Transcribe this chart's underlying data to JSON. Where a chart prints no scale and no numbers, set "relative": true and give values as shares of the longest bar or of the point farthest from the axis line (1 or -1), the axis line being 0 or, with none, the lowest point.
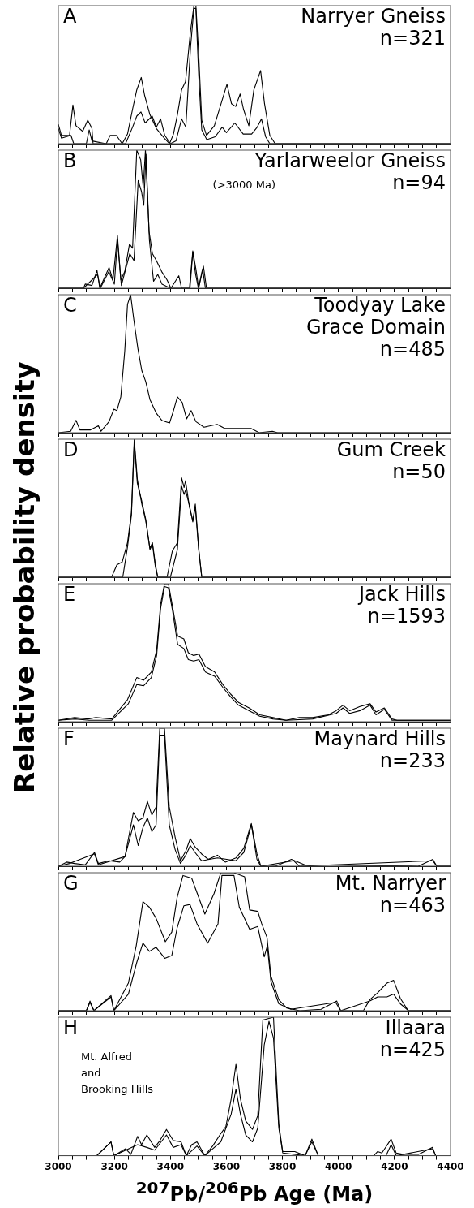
{
  "chart_data": [
    {
      "type": "line",
      "title": "A",
      "subtitle": "Narryer Gneiss\nn=321",
      "relative": true,
      "xlim": [
        3000,
        4400
      ],
      "tick_labels": false,
      "xticks": [
        3000,
        {
          "value": 3050,
          "label": null
        },
        {
          "value": 3100,
          "label": null
        },
        {
          "value": 3150,
          "label": null
        },
        3200,
        {
          "value": 3250,
          "label": null
        },
        {
          "value": 3300,
          "label": null
        },
        {
          "value": 3350,
          "label": null
        },
        3400,
        {
          "value": 3450,
          "label": null
        },
        {
          "value": 3500,
          "label": null
        },
        {
          "value": 3550,
          "label": null
        },
        3600,
        {
          "value": 3650,
          "label": null
        },
        {
          "value": 3700,
          "label": null
        },
        {
          "value": 3750,
          "label": null
        },
        3800,
        {
          "value": 3850,
          "label": null
        },
        {
          "value": 3900,
          "label": null
        },
        {
          "value": 3950,
          "label": null
        },
        4000,
        {
          "value": 4050,
          "label": null
        },
        {
          "value": 4100,
          "label": null
        },
        {
          "value": 4150,
          "label": null
        },
        4200,
        {
          "value": 4250,
          "label": null
        },
        {
          "value": 4300,
          "label": null
        },
        {
          "value": 4350,
          "label": null
        },
        4400
      ],
      "series": [
        {
          "color": "#000000",
          "x": [
            3000,
            3011,
            3040,
            3052,
            3063,
            3087,
            3105,
            3120,
            3124,
            3171,
            3185,
            3207,
            3228,
            3247,
            3265,
            3280,
            3296,
            3308,
            3327,
            3350,
            3378,
            3397,
            3411,
            3425,
            3440,
            3454,
            3472,
            3484,
            3491,
            3501,
            3512,
            3529,
            3557,
            3581,
            3602,
            3618,
            3633,
            3649,
            3661,
            3680,
            3698,
            3722,
            3736,
            3755,
            3774,
            4400
          ],
          "values": [
            0.14,
            0.06,
            0.06,
            0.28,
            0.13,
            0.09,
            0.17,
            0.11,
            0,
            0,
            0.06,
            0.06,
            0,
            0.07,
            0.25,
            0.39,
            0.48,
            0.35,
            0.21,
            0.11,
            0.04,
            0,
            0.07,
            0.21,
            0.39,
            0.45,
            0.82,
            1,
            1,
            0.65,
            0.17,
            0.06,
            0.13,
            0.29,
            0.43,
            0.29,
            0.27,
            0.36,
            0.25,
            0.13,
            0.39,
            0.53,
            0.29,
            0.06,
            0,
            0
          ]
        },
        {
          "color": "#000000",
          "x": [
            3000,
            3011,
            3045,
            3055,
            3100,
            3110,
            3120,
            3170,
            3240,
            3265,
            3280,
            3295,
            3310,
            3335,
            3350,
            3365,
            3380,
            3400,
            3420,
            3440,
            3455,
            3472,
            3484,
            3491,
            3501,
            3512,
            3530,
            3560,
            3585,
            3600,
            3630,
            3660,
            3690,
            3710,
            3725,
            3740,
            3755,
            4400
          ],
          "values": [
            0.11,
            0.04,
            0.06,
            0,
            0,
            0.1,
            0.02,
            0,
            0,
            0.12,
            0.2,
            0.23,
            0.15,
            0.2,
            0.12,
            0.18,
            0.06,
            0,
            0.02,
            0.18,
            0.12,
            0.7,
            0.98,
            0.98,
            0.5,
            0.1,
            0.03,
            0.05,
            0.12,
            0.08,
            0.15,
            0.07,
            0.07,
            0.12,
            0.18,
            0.05,
            0,
            0
          ]
        }
      ]
    },
    {
      "type": "line",
      "title": "B",
      "subtitle": "Yarlarweelor Gneiss\nn=94",
      "annotations": [
        "(>3000 Ma)"
      ],
      "relative": true,
      "xlim": [
        3000,
        4400
      ],
      "tick_labels": false,
      "xticks": [
        3000,
        {
          "value": 3050,
          "label": null
        },
        {
          "value": 3100,
          "label": null
        },
        {
          "value": 3150,
          "label": null
        },
        3200,
        {
          "value": 3250,
          "label": null
        },
        {
          "value": 3300,
          "label": null
        },
        {
          "value": 3350,
          "label": null
        },
        3400,
        {
          "value": 3450,
          "label": null
        },
        {
          "value": 3500,
          "label": null
        },
        {
          "value": 3550,
          "label": null
        },
        3600,
        {
          "value": 3650,
          "label": null
        },
        {
          "value": 3700,
          "label": null
        },
        {
          "value": 3750,
          "label": null
        },
        3800,
        {
          "value": 3850,
          "label": null
        },
        {
          "value": 3900,
          "label": null
        },
        {
          "value": 3950,
          "label": null
        },
        4000,
        {
          "value": 4050,
          "label": null
        },
        {
          "value": 4100,
          "label": null
        },
        {
          "value": 4150,
          "label": null
        },
        4200,
        {
          "value": 4250,
          "label": null
        },
        {
          "value": 4300,
          "label": null
        },
        {
          "value": 4350,
          "label": null
        },
        4400
      ],
      "series": [
        {
          "color": "#000000",
          "x": [
            3000,
            3090,
            3096,
            3120,
            3138,
            3148,
            3181,
            3195,
            3211,
            3223,
            3237,
            3254,
            3265,
            3280,
            3294,
            3303,
            3311,
            3324,
            3336,
            3350,
            3369,
            3388,
            3402,
            3430,
            3440,
            3468,
            3480,
            3491,
            3501,
            3518,
            3529,
            4400
          ],
          "values": [
            0,
            0,
            0.03,
            0.02,
            0.13,
            0,
            0.15,
            0.06,
            0.38,
            0.06,
            0.12,
            0.32,
            0.29,
            1,
            0.93,
            0.73,
            1,
            0.41,
            0.25,
            0.2,
            0.12,
            0.06,
            0,
            0.09,
            0,
            0,
            0.27,
            0.14,
            0,
            0.16,
            0,
            0
          ]
        },
        {
          "color": "#000000",
          "x": [
            3000,
            3090,
            3140,
            3150,
            3180,
            3200,
            3211,
            3225,
            3255,
            3270,
            3285,
            3297,
            3305,
            3313,
            3325,
            3340,
            3355,
            3370,
            3400,
            3470,
            3480,
            3490,
            3500,
            3515,
            3525,
            4400
          ],
          "values": [
            0,
            0,
            0.1,
            0,
            0.12,
            0.03,
            0.35,
            0.02,
            0.25,
            0.2,
            0.78,
            0.7,
            0.6,
            0.97,
            0.35,
            0.05,
            0.1,
            0.03,
            0,
            0,
            0.26,
            0.1,
            0,
            0.14,
            0,
            0
          ]
        }
      ]
    },
    {
      "type": "line",
      "title": "C",
      "subtitle": "Toodyay Lake\nGrace Domain\nn=485",
      "relative": true,
      "xlim": [
        3000,
        4400
      ],
      "tick_labels": false,
      "xticks": [
        3000,
        {
          "value": 3050,
          "label": null
        },
        {
          "value": 3100,
          "label": null
        },
        {
          "value": 3150,
          "label": null
        },
        3200,
        {
          "value": 3250,
          "label": null
        },
        {
          "value": 3300,
          "label": null
        },
        {
          "value": 3350,
          "label": null
        },
        3400,
        {
          "value": 3450,
          "label": null
        },
        {
          "value": 3500,
          "label": null
        },
        {
          "value": 3550,
          "label": null
        },
        3600,
        {
          "value": 3650,
          "label": null
        },
        {
          "value": 3700,
          "label": null
        },
        {
          "value": 3750,
          "label": null
        },
        3800,
        {
          "value": 3850,
          "label": null
        },
        {
          "value": 3900,
          "label": null
        },
        {
          "value": 3950,
          "label": null
        },
        4000,
        {
          "value": 4050,
          "label": null
        },
        {
          "value": 4100,
          "label": null
        },
        {
          "value": 4150,
          "label": null
        },
        4200,
        {
          "value": 4250,
          "label": null
        },
        {
          "value": 4300,
          "label": null
        },
        {
          "value": 4350,
          "label": null
        },
        4400
      ],
      "series": [
        {
          "color": "#000000",
          "x": [
            3000,
            3044,
            3063,
            3077,
            3115,
            3143,
            3152,
            3181,
            3198,
            3209,
            3223,
            3237,
            3247,
            3258,
            3270,
            3284,
            3298,
            3312,
            3327,
            3350,
            3369,
            3383,
            3397,
            3411,
            3425,
            3442,
            3458,
            3474,
            3491,
            3520,
            3567,
            3595,
            3632,
            3689,
            3717,
            3764,
            3783,
            3849,
            4400
          ],
          "values": [
            0,
            0.01,
            0.09,
            0.02,
            0.02,
            0.05,
            0.01,
            0.08,
            0.17,
            0.16,
            0.26,
            0.59,
            0.93,
            1,
            0.81,
            0.61,
            0.45,
            0.37,
            0.24,
            0.14,
            0.09,
            0.08,
            0.07,
            0.16,
            0.26,
            0.22,
            0.1,
            0.16,
            0.08,
            0.04,
            0.06,
            0.03,
            0.03,
            0.03,
            0,
            0.01,
            0,
            0,
            0
          ]
        }
      ]
    },
    {
      "type": "line",
      "title": "D",
      "subtitle": "Gum Creek\nn=50",
      "ylabel": "Relative probability density",
      "relative": true,
      "xlim": [
        3000,
        4400
      ],
      "tick_labels": false,
      "xticks": [
        3000,
        {
          "value": 3050,
          "label": null
        },
        {
          "value": 3100,
          "label": null
        },
        {
          "value": 3150,
          "label": null
        },
        3200,
        {
          "value": 3250,
          "label": null
        },
        {
          "value": 3300,
          "label": null
        },
        {
          "value": 3350,
          "label": null
        },
        3400,
        {
          "value": 3450,
          "label": null
        },
        {
          "value": 3500,
          "label": null
        },
        {
          "value": 3550,
          "label": null
        },
        3600,
        {
          "value": 3650,
          "label": null
        },
        {
          "value": 3700,
          "label": null
        },
        {
          "value": 3750,
          "label": null
        },
        3800,
        {
          "value": 3850,
          "label": null
        },
        {
          "value": 3900,
          "label": null
        },
        {
          "value": 3950,
          "label": null
        },
        4000,
        {
          "value": 4050,
          "label": null
        },
        {
          "value": 4100,
          "label": null
        },
        {
          "value": 4150,
          "label": null
        },
        4200,
        {
          "value": 4250,
          "label": null
        },
        {
          "value": 4300,
          "label": null
        },
        {
          "value": 4350,
          "label": null
        },
        4400
      ],
      "series": [
        {
          "color": "#000000",
          "x": [
            3000,
            3190,
            3209,
            3228,
            3247,
            3261,
            3271,
            3282,
            3298,
            3312,
            3327,
            3336,
            3346,
            3355,
            3388,
            3407,
            3425,
            3440,
            3449,
            3454,
            3468,
            3480,
            3489,
            3501,
            3512,
            4400
          ],
          "values": [
            0,
            0,
            0.09,
            0.11,
            0.25,
            0.47,
            1,
            0.71,
            0.53,
            0.41,
            0.21,
            0.25,
            0.1,
            0,
            0,
            0.19,
            0.25,
            0.72,
            0.65,
            0.7,
            0.51,
            0.41,
            0.53,
            0.21,
            0,
            0
          ]
        },
        {
          "color": "#000000",
          "x": [
            3000,
            3230,
            3247,
            3261,
            3271,
            3282,
            3298,
            3312,
            3327,
            3336,
            3346,
            3355,
            3400,
            3425,
            3440,
            3449,
            3454,
            3468,
            3480,
            3489,
            3501,
            3512,
            4400
          ],
          "values": [
            0,
            0,
            0.22,
            0.45,
            0.98,
            0.68,
            0.55,
            0.42,
            0.2,
            0.24,
            0.08,
            0,
            0,
            0.2,
            0.66,
            0.6,
            0.63,
            0.52,
            0.4,
            0.51,
            0.2,
            0,
            0
          ]
        }
      ]
    },
    {
      "type": "line",
      "title": "E",
      "subtitle": "Jack Hills\nn=1593",
      "relative": true,
      "xlim": [
        3000,
        4400
      ],
      "tick_labels": false,
      "xticks": [
        3000,
        {
          "value": 3050,
          "label": null
        },
        {
          "value": 3100,
          "label": null
        },
        {
          "value": 3150,
          "label": null
        },
        3200,
        {
          "value": 3250,
          "label": null
        },
        {
          "value": 3300,
          "label": null
        },
        {
          "value": 3350,
          "label": null
        },
        3400,
        {
          "value": 3450,
          "label": null
        },
        {
          "value": 3500,
          "label": null
        },
        {
          "value": 3550,
          "label": null
        },
        3600,
        {
          "value": 3650,
          "label": null
        },
        {
          "value": 3700,
          "label": null
        },
        {
          "value": 3750,
          "label": null
        },
        3800,
        {
          "value": 3850,
          "label": null
        },
        {
          "value": 3900,
          "label": null
        },
        {
          "value": 3950,
          "label": null
        },
        4000,
        {
          "value": 4050,
          "label": null
        },
        {
          "value": 4100,
          "label": null
        },
        {
          "value": 4150,
          "label": null
        },
        4200,
        {
          "value": 4250,
          "label": null
        },
        {
          "value": 4300,
          "label": null
        },
        {
          "value": 4350,
          "label": null
        },
        4400
      ],
      "series": [
        {
          "color": "#000000",
          "x": [
            3000,
            3058,
            3106,
            3134,
            3191,
            3219,
            3247,
            3280,
            3304,
            3332,
            3351,
            3365,
            3379,
            3393,
            3408,
            3426,
            3448,
            3464,
            3483,
            3502,
            3525,
            3558,
            3587,
            3615,
            3643,
            3681,
            3719,
            3766,
            3813,
            3860,
            3908,
            3964,
            3992,
            4016,
            4040,
            4077,
            4113,
            4134,
            4164,
            4191,
            4209,
            4360,
            4400
          ],
          "values": [
            0.01,
            0.03,
            0.02,
            0.03,
            0.02,
            0.09,
            0.16,
            0.32,
            0.3,
            0.36,
            0.52,
            0.85,
            1,
            1,
            0.83,
            0.62,
            0.6,
            0.5,
            0.48,
            0.49,
            0.4,
            0.36,
            0.27,
            0.2,
            0.14,
            0.1,
            0.05,
            0.03,
            0.01,
            0.03,
            0.03,
            0.05,
            0.08,
            0.12,
            0.08,
            0.11,
            0.13,
            0.07,
            0.1,
            0.02,
            0.01,
            0.01,
            0.01
          ]
        },
        {
          "color": "#000000",
          "x": [
            3000,
            3060,
            3110,
            3190,
            3220,
            3250,
            3280,
            3304,
            3332,
            3351,
            3365,
            3379,
            3393,
            3408,
            3426,
            3448,
            3464,
            3483,
            3502,
            3525,
            3558,
            3587,
            3615,
            3643,
            3681,
            3719,
            3766,
            3813,
            3908,
            3992,
            4016,
            4040,
            4077,
            4113,
            4134,
            4164,
            4191,
            4400
          ],
          "values": [
            0.01,
            0.02,
            0.01,
            0.01,
            0.07,
            0.13,
            0.27,
            0.26,
            0.32,
            0.48,
            0.82,
            0.98,
            0.97,
            0.8,
            0.56,
            0.53,
            0.45,
            0.44,
            0.45,
            0.36,
            0.33,
            0.25,
            0.18,
            0.12,
            0.08,
            0.04,
            0.02,
            0.01,
            0.02,
            0.06,
            0.1,
            0.06,
            0.08,
            0.12,
            0.05,
            0.09,
            0.01,
            0.01
          ]
        }
      ]
    },
    {
      "type": "line",
      "title": "F",
      "subtitle": "Maynard Hills\nn=233",
      "relative": true,
      "xlim": [
        3000,
        4400
      ],
      "tick_labels": false,
      "xticks": [
        3000,
        {
          "value": 3050,
          "label": null
        },
        {
          "value": 3100,
          "label": null
        },
        {
          "value": 3150,
          "label": null
        },
        3200,
        {
          "value": 3250,
          "label": null
        },
        {
          "value": 3300,
          "label": null
        },
        {
          "value": 3350,
          "label": null
        },
        3400,
        {
          "value": 3450,
          "label": null
        },
        {
          "value": 3500,
          "label": null
        },
        {
          "value": 3550,
          "label": null
        },
        3600,
        {
          "value": 3650,
          "label": null
        },
        {
          "value": 3700,
          "label": null
        },
        {
          "value": 3750,
          "label": null
        },
        3800,
        {
          "value": 3850,
          "label": null
        },
        {
          "value": 3900,
          "label": null
        },
        {
          "value": 3950,
          "label": null
        },
        4000,
        {
          "value": 4050,
          "label": null
        },
        {
          "value": 4100,
          "label": null
        },
        {
          "value": 4150,
          "label": null
        },
        4200,
        {
          "value": 4250,
          "label": null
        },
        {
          "value": 4300,
          "label": null
        },
        {
          "value": 4350,
          "label": null
        },
        4400
      ],
      "series": [
        {
          "color": "#000000",
          "x": [
            3000,
            3030,
            3058,
            3096,
            3129,
            3143,
            3181,
            3219,
            3238,
            3268,
            3285,
            3302,
            3318,
            3334,
            3349,
            3362,
            3379,
            3396,
            3417,
            3436,
            3455,
            3471,
            3488,
            3511,
            3535,
            3568,
            3596,
            3634,
            3662,
            3689,
            3709,
            3723,
            3775,
            3832,
            3879,
            4285,
            4337,
            4351,
            4400
          ],
          "values": [
            0,
            0.03,
            0.02,
            0.01,
            0.1,
            0.02,
            0.04,
            0.03,
            0.07,
            0.39,
            0.33,
            0.35,
            0.47,
            0.37,
            0.43,
            1,
            1,
            0.43,
            0.21,
            0.04,
            0.11,
            0.2,
            0.14,
            0.09,
            0.05,
            0.08,
            0.03,
            0.06,
            0.13,
            0.31,
            0.09,
            0,
            0,
            0.05,
            0.01,
            0,
            0.05,
            0,
            0
          ]
        },
        {
          "color": "#000000",
          "x": [
            3000,
            3040,
            3129,
            3143,
            3238,
            3268,
            3285,
            3302,
            3318,
            3334,
            3349,
            3362,
            3379,
            3396,
            3417,
            3436,
            3455,
            3471,
            3488,
            3511,
            3568,
            3634,
            3662,
            3689,
            3709,
            3723,
            3840,
            3860,
            4337,
            4351,
            4400
          ],
          "values": [
            0,
            0.02,
            0.09,
            0.01,
            0.07,
            0.3,
            0.15,
            0.28,
            0.35,
            0.25,
            0.3,
            0.95,
            0.95,
            0.3,
            0.12,
            0.02,
            0.08,
            0.15,
            0.1,
            0.04,
            0.06,
            0.04,
            0.1,
            0.3,
            0.05,
            0,
            0.04,
            0,
            0.04,
            0,
            0
          ]
        }
      ]
    },
    {
      "type": "line",
      "title": "G",
      "subtitle": "Mt. Narryer\nn=463",
      "relative": true,
      "xlim": [
        3000,
        4400
      ],
      "tick_labels": false,
      "xticks": [
        3000,
        {
          "value": 3050,
          "label": null
        },
        {
          "value": 3100,
          "label": null
        },
        {
          "value": 3150,
          "label": null
        },
        3200,
        {
          "value": 3250,
          "label": null
        },
        {
          "value": 3300,
          "label": null
        },
        {
          "value": 3350,
          "label": null
        },
        3400,
        {
          "value": 3450,
          "label": null
        },
        {
          "value": 3500,
          "label": null
        },
        {
          "value": 3550,
          "label": null
        },
        3600,
        {
          "value": 3650,
          "label": null
        },
        {
          "value": 3700,
          "label": null
        },
        {
          "value": 3750,
          "label": null
        },
        3800,
        {
          "value": 3850,
          "label": null
        },
        {
          "value": 3900,
          "label": null
        },
        {
          "value": 3950,
          "label": null
        },
        4000,
        {
          "value": 4050,
          "label": null
        },
        {
          "value": 4100,
          "label": null
        },
        {
          "value": 4150,
          "label": null
        },
        4200,
        {
          "value": 4250,
          "label": null
        },
        {
          "value": 4300,
          "label": null
        },
        {
          "value": 4350,
          "label": null
        },
        4400
      ],
      "series": [
        {
          "color": "#000000",
          "x": [
            3000,
            3100,
            3113,
            3127,
            3188,
            3198,
            3250,
            3278,
            3302,
            3325,
            3349,
            3382,
            3405,
            3424,
            3445,
            3476,
            3523,
            3556,
            3580,
            3627,
            3665,
            3683,
            3712,
            3726,
            3745,
            3759,
            3787,
            3815,
            3862,
            3938,
            3994,
            4008,
            4089,
            4112,
            4140,
            4173,
            4197,
            4221,
            4249,
            4400
          ],
          "values": [
            0,
            0,
            0.07,
            0,
            0.11,
            0,
            0.2,
            0.47,
            0.79,
            0.75,
            0.67,
            0.5,
            0.57,
            0.82,
            0.98,
            0.96,
            0.7,
            0.85,
            1,
            1,
            0.97,
            0.73,
            0.72,
            0.63,
            0.53,
            0.25,
            0.08,
            0.02,
            0,
            0.01,
            0.07,
            0,
            0,
            0.08,
            0.13,
            0.2,
            0.22,
            0.09,
            0,
            0
          ]
        },
        {
          "color": "#000000",
          "x": [
            3000,
            3100,
            3113,
            3127,
            3188,
            3198,
            3250,
            3280,
            3302,
            3325,
            3349,
            3380,
            3405,
            3424,
            3448,
            3470,
            3495,
            3533,
            3570,
            3584,
            3627,
            3646,
            3683,
            3712,
            3735,
            3746,
            3759,
            3787,
            3830,
            3990,
            4008,
            4112,
            4140,
            4173,
            4197,
            4221,
            4250,
            4400
          ],
          "values": [
            0,
            0,
            0.06,
            0,
            0.1,
            0,
            0.12,
            0.35,
            0.49,
            0.43,
            0.46,
            0.38,
            0.4,
            0.6,
            0.76,
            0.77,
            0.63,
            0.49,
            0.63,
            0.98,
            0.98,
            0.75,
            0.59,
            0.61,
            0.39,
            0.47,
            0.21,
            0.05,
            0.01,
            0.06,
            0,
            0.07,
            0.1,
            0.1,
            0.12,
            0.05,
            0,
            0
          ]
        }
      ]
    },
    {
      "type": "line",
      "title": "H",
      "subtitle": "Illaara\nn=425",
      "annotations": [
        "Mt. Alfred\nand\nBrooking Hills"
      ],
      "xlabel": "$^{207}$Pb/$^{206}$Pb Age (Ma)",
      "relative": true,
      "xlim": [
        3000,
        4400
      ],
      "tick_labels": "x",
      "xticks": [
        3000,
        {
          "value": 3050,
          "label": null
        },
        {
          "value": 3100,
          "label": null
        },
        {
          "value": 3150,
          "label": null
        },
        3200,
        {
          "value": 3250,
          "label": null
        },
        {
          "value": 3300,
          "label": null
        },
        {
          "value": 3350,
          "label": null
        },
        3400,
        {
          "value": 3450,
          "label": null
        },
        {
          "value": 3500,
          "label": null
        },
        {
          "value": 3550,
          "label": null
        },
        3600,
        {
          "value": 3650,
          "label": null
        },
        {
          "value": 3700,
          "label": null
        },
        {
          "value": 3750,
          "label": null
        },
        3800,
        {
          "value": 3850,
          "label": null
        },
        {
          "value": 3900,
          "label": null
        },
        {
          "value": 3950,
          "label": null
        },
        4000,
        {
          "value": 4050,
          "label": null
        },
        {
          "value": 4100,
          "label": null
        },
        {
          "value": 4150,
          "label": null
        },
        4200,
        {
          "value": 4250,
          "label": null
        },
        {
          "value": 4300,
          "label": null
        },
        {
          "value": 4350,
          "label": null
        },
        4400
      ],
      "series": [
        {
          "color": "#000000",
          "x": [
            3000,
            3137,
            3188,
            3198,
            3240,
            3259,
            3283,
            3297,
            3316,
            3344,
            3363,
            3386,
            3410,
            3438,
            3457,
            3476,
            3495,
            3523,
            3551,
            3580,
            3598,
            3617,
            3634,
            3650,
            3669,
            3693,
            3712,
            3730,
            3768,
            3787,
            3801,
            3844,
            3881,
            3905,
            3928,
            4126,
            4140,
            4155,
            4188,
            4206,
            4230,
            4286,
            4336,
            4347,
            4400
          ],
          "values": [
            0,
            0,
            0.1,
            0,
            0.05,
            0.01,
            0.14,
            0.08,
            0.15,
            0.06,
            0.11,
            0.19,
            0.11,
            0.1,
            0,
            0.08,
            0.1,
            0,
            0.07,
            0.16,
            0.21,
            0.41,
            0.66,
            0.41,
            0.25,
            0.19,
            0.29,
            0.98,
            1,
            0.23,
            0.03,
            0.03,
            0,
            0.12,
            0,
            0,
            0.03,
            0.02,
            0.12,
            0.02,
            0.01,
            0.01,
            0.06,
            0,
            0
          ]
        },
        {
          "color": "#000000",
          "x": [
            3000,
            3137,
            3188,
            3198,
            3283,
            3316,
            3344,
            3386,
            3410,
            3438,
            3457,
            3495,
            3523,
            3551,
            3580,
            3617,
            3634,
            3650,
            3669,
            3693,
            3712,
            3735,
            3752,
            3768,
            3787,
            3801,
            3881,
            3905,
            3928,
            4170,
            4188,
            4206,
            4336,
            4347,
            4400
          ],
          "values": [
            0,
            0,
            0.1,
            0,
            0.08,
            0.06,
            0.04,
            0.15,
            0.06,
            0.08,
            0,
            0.07,
            0,
            0.05,
            0.1,
            0.3,
            0.48,
            0.3,
            0.15,
            0.1,
            0.2,
            0.8,
            0.97,
            0.85,
            0.2,
            0.02,
            0,
            0.1,
            0,
            0,
            0.08,
            0,
            0.05,
            0,
            0
          ]
        }
      ]
    }
  ]
}
